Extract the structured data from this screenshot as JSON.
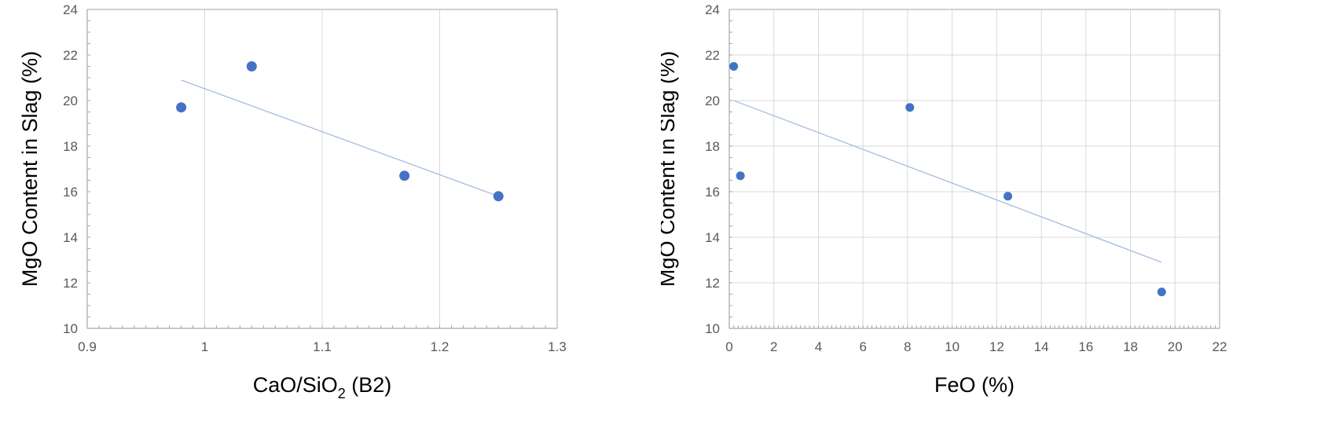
{
  "colors": {
    "marker": "#4472C4",
    "trendline": "#9DB6E2",
    "grid": "#D9D9D9",
    "axis": "#A6A6A6",
    "tick_text": "#595959"
  },
  "chart_data": [
    {
      "type": "scatter",
      "title": "",
      "xlabel": "CaO/SiO2 (B2)",
      "xlabel_parts": {
        "main": "CaO/SiO",
        "sub": "2",
        "tail": " (B2)"
      },
      "ylabel": "MgO Content in Slag (%)",
      "xlim": [
        0.9,
        1.3
      ],
      "ylim": [
        10,
        24
      ],
      "xticks": [
        0.9,
        1.0,
        1.1,
        1.2,
        1.3
      ],
      "xtick_labels": [
        "0.9",
        "1",
        "1.1",
        "1.2",
        "1.3"
      ],
      "yticks": [
        10,
        12,
        14,
        16,
        18,
        20,
        22,
        24
      ],
      "ytick_labels": [
        "10",
        "12",
        "14",
        "16",
        "18",
        "20",
        "22",
        "24"
      ],
      "x_minor_step": 0.01,
      "y_minor_step": 0.5,
      "grid": "vertical major",
      "legend": "none",
      "series": [
        {
          "x": [
            0.98,
            1.04,
            1.17,
            1.25
          ],
          "y": [
            19.7,
            21.5,
            16.7,
            15.8
          ]
        }
      ],
      "trendline": {
        "type": "linear",
        "x_range": [
          0.98,
          1.25
        ],
        "y": [
          20.9,
          15.8
        ]
      }
    },
    {
      "type": "scatter",
      "title": "",
      "xlabel": "FeO (%)",
      "ylabel": "MgO Content in Slag (%)",
      "xlim": [
        0,
        22
      ],
      "ylim": [
        10,
        24
      ],
      "xticks": [
        0,
        2,
        4,
        6,
        8,
        10,
        12,
        14,
        16,
        18,
        20,
        22
      ],
      "xtick_labels": [
        "0",
        "2",
        "4",
        "6",
        "8",
        "10",
        "12",
        "14",
        "16",
        "18",
        "20",
        "22"
      ],
      "yticks": [
        10,
        12,
        14,
        16,
        18,
        20,
        22,
        24
      ],
      "ytick_labels": [
        "10",
        "12",
        "14",
        "16",
        "18",
        "20",
        "22",
        "24"
      ],
      "x_minor_step": 0.2,
      "y_minor_step": 0.5,
      "grid": "major both",
      "legend": "none",
      "series": [
        {
          "x": [
            0.2,
            0.5,
            8.1,
            12.5,
            19.4
          ],
          "y": [
            21.5,
            16.7,
            19.7,
            15.8,
            11.6
          ]
        }
      ],
      "trendline": {
        "type": "linear",
        "x_range": [
          0.2,
          19.4
        ],
        "y": [
          20.0,
          12.9
        ]
      }
    }
  ]
}
